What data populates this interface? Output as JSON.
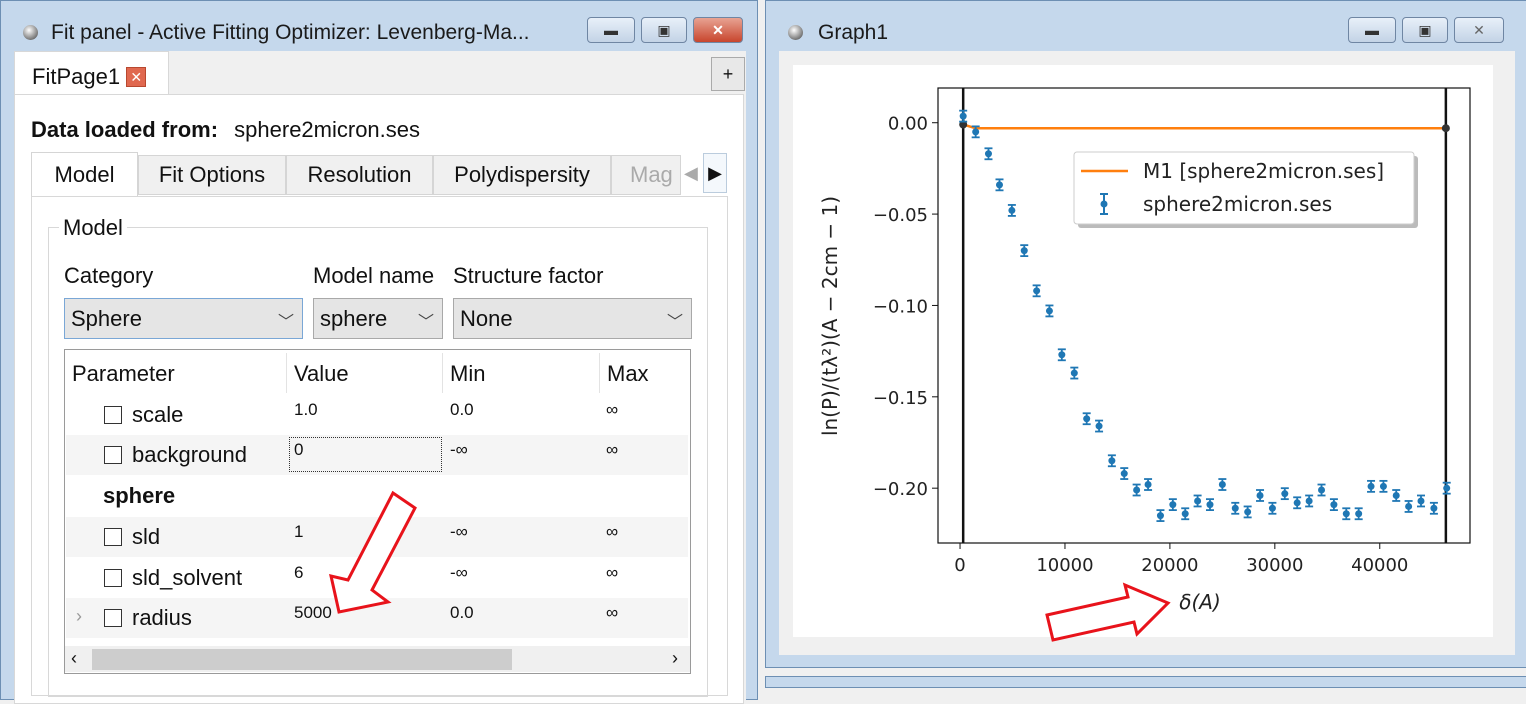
{
  "fit_panel": {
    "title": "Fit panel - Active Fitting Optimizer: Levenberg-Ma...",
    "page_tab": "FitPage1",
    "add_tab": "+",
    "data_label": "Data loaded from:",
    "data_file": "sphere2micron.ses",
    "tabs": [
      "Model",
      "Fit Options",
      "Resolution",
      "Polydispersity",
      "Mag"
    ],
    "group_title": "Model",
    "category_label": "Category",
    "model_name_label": "Model name",
    "structure_factor_label": "Structure factor",
    "category": "Sphere",
    "model_name": "sphere",
    "structure_factor": "None",
    "columns": [
      "Parameter",
      "Value",
      "Min",
      "Max"
    ],
    "section": "sphere",
    "params": [
      {
        "name": "scale",
        "value": "1.0",
        "min": "0.0",
        "max": "∞"
      },
      {
        "name": "background",
        "value": "0",
        "min": "-∞",
        "max": "∞"
      },
      {
        "name": "sld",
        "value": "1",
        "min": "-∞",
        "max": "∞"
      },
      {
        "name": "sld_solvent",
        "value": "6",
        "min": "-∞",
        "max": "∞"
      },
      {
        "name": "radius",
        "value": "5000",
        "min": "0.0",
        "max": "∞"
      }
    ]
  },
  "graph": {
    "title": "Graph1"
  },
  "colors": {
    "data": "#1f77b4",
    "model": "#ff7f0e",
    "annotation": "#e8131b"
  },
  "chart_data": {
    "type": "scatter",
    "xlabel": "δ(A)",
    "ylabel": "ln(P)/(tλ²)(A − 2cm − 1)",
    "xlim": [
      -2100,
      48600
    ],
    "ylim": [
      -0.23,
      0.019
    ],
    "xticks": [
      0,
      10000,
      20000,
      30000,
      40000
    ],
    "yticks": [
      0.0,
      -0.05,
      -0.1,
      -0.15,
      -0.2
    ],
    "ytick_labels": [
      "0.00",
      "−0.05",
      "−0.10",
      "−0.15",
      "−0.20"
    ],
    "legend": "upper-right-inset",
    "vertical_lines": [
      300,
      46300
    ],
    "series": [
      {
        "name": "M1 [sphere2micron.ses]",
        "type": "line",
        "x": [
          300,
          1490,
          46300
        ],
        "y": [
          -0.001,
          -0.003,
          -0.003
        ]
      },
      {
        "name": "sphere2micron.ses",
        "type": "errorbar",
        "error": 0.003,
        "x": [
          300,
          1490,
          2710,
          3760,
          4940,
          6120,
          7300,
          8520,
          9700,
          10890,
          12070,
          13250,
          14470,
          15650,
          16830,
          17920,
          19100,
          20280,
          21460,
          22640,
          23820,
          25000,
          26230,
          27410,
          28590,
          29770,
          30950,
          32130,
          33270,
          34450,
          35630,
          36810,
          37990,
          39170,
          40350,
          41570,
          42750,
          43930,
          45160,
          46380
        ],
        "y": [
          0.0036,
          -0.005,
          -0.017,
          -0.034,
          -0.048,
          -0.07,
          -0.092,
          -0.103,
          -0.127,
          -0.137,
          -0.162,
          -0.166,
          -0.185,
          -0.192,
          -0.201,
          -0.198,
          -0.215,
          -0.209,
          -0.214,
          -0.207,
          -0.209,
          -0.198,
          -0.211,
          -0.213,
          -0.204,
          -0.211,
          -0.203,
          -0.208,
          -0.207,
          -0.201,
          -0.209,
          -0.214,
          -0.214,
          -0.199,
          -0.199,
          -0.204,
          -0.21,
          -0.207,
          -0.211,
          -0.2
        ]
      }
    ]
  }
}
